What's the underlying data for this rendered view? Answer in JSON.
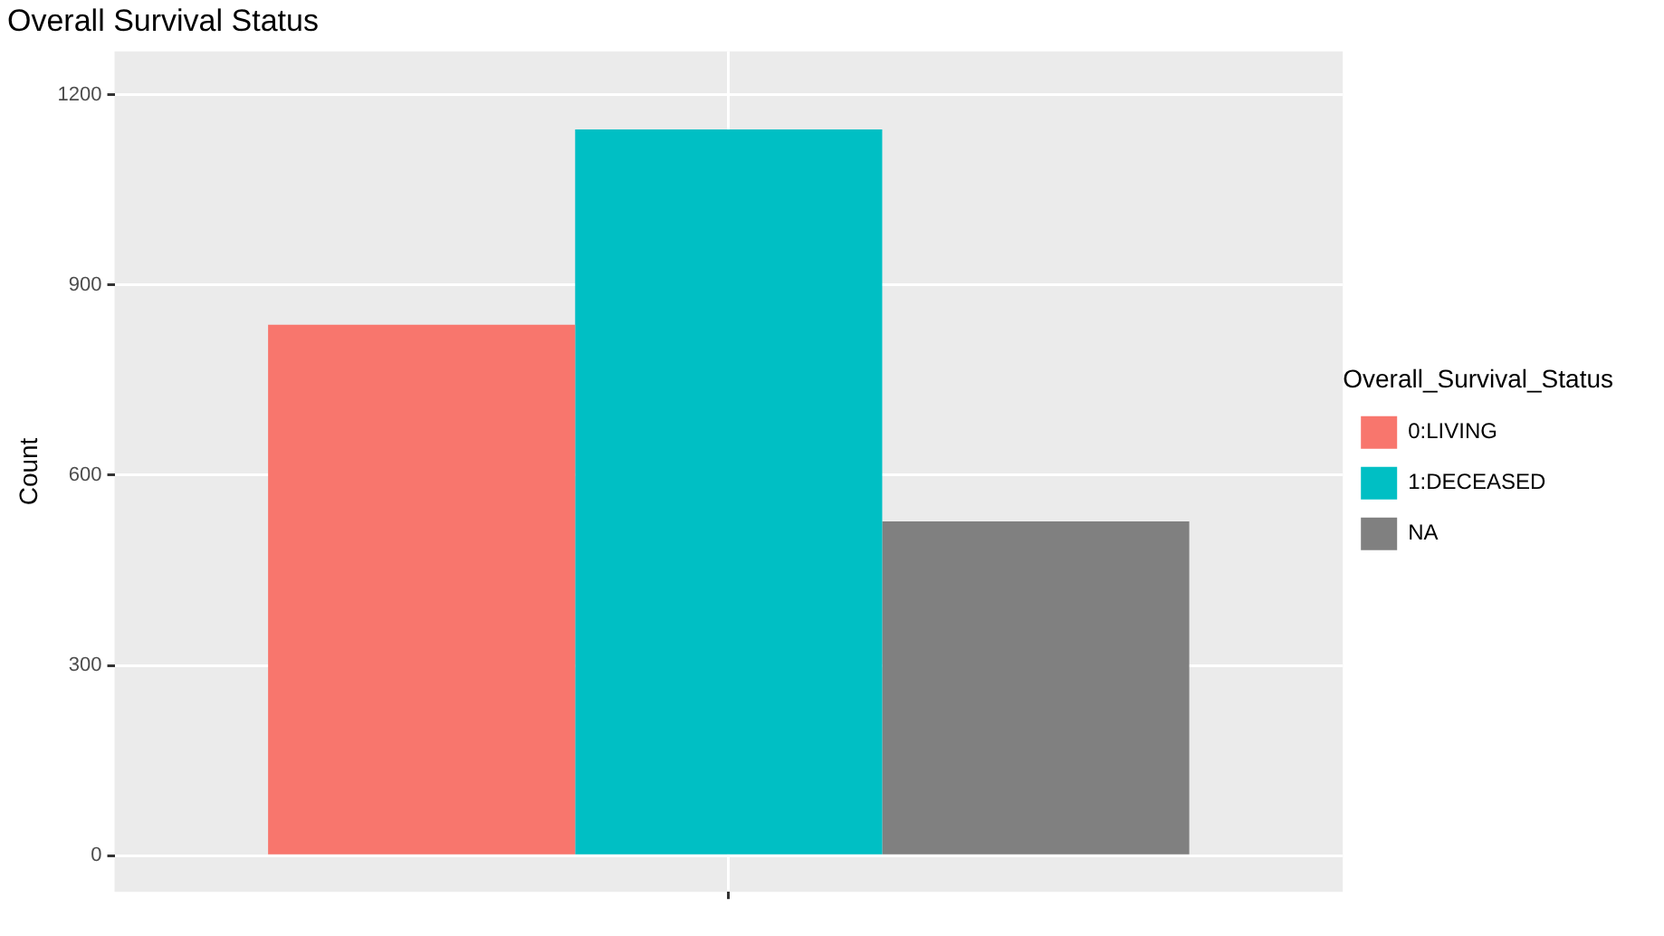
{
  "chart_data": {
    "type": "bar",
    "title": "Overall Survival Status",
    "ylabel": "Count",
    "legend_title": "Overall_Survival_Status",
    "categories": [
      null
    ],
    "series": [
      {
        "name": "0:LIVING",
        "color": "#f8766d",
        "values": [
          837
        ]
      },
      {
        "name": "1:DECEASED",
        "color": "#00bfc4",
        "values": [
          1145
        ]
      },
      {
        "name": "NA",
        "color": "#808080",
        "values": [
          527
        ]
      }
    ],
    "ylim": [
      -57,
      1268
    ],
    "yticks": [
      0,
      300,
      600,
      900,
      1200
    ],
    "grid": true,
    "legend": "right"
  }
}
